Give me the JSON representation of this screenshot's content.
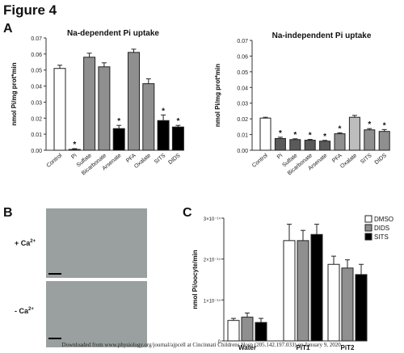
{
  "figure_title": "Figure 4",
  "panels": {
    "A": "A",
    "B": "B",
    "C": "C"
  },
  "micrographs": {
    "top_label_base": "+ Ca",
    "top_label_sup": "2+",
    "bottom_label_base": "- Ca",
    "bottom_label_sup": "2+"
  },
  "footer": "Downloaded from www.physiology.org/journal/ajpcell at Cincinnati Childrens Hosp (205.142.197.033) on January 9, 2020.",
  "colors": {
    "white": "#ffffff",
    "black": "#000000",
    "gray": "#8f8f8f",
    "light_gray": "#bdbdbd",
    "dark_gray": "#5a5a5a"
  },
  "chart_data": [
    {
      "type": "bar",
      "panel": "A",
      "title": "Na-dependent Pi uptake",
      "ylabel": "nmol Pi/mg prot*min",
      "ylim": [
        0,
        0.07
      ],
      "yticks": [
        "0.00",
        "0.01",
        "0.02",
        "0.03",
        "0.04",
        "0.05",
        "0.06",
        "0.07"
      ],
      "categories": [
        "Control",
        "Pi",
        "Sulfate",
        "Bicarbonate",
        "Arsenate",
        "PFA",
        "Oxalate",
        "SITS",
        "DIDS"
      ],
      "values": [
        0.051,
        0.0005,
        0.058,
        0.052,
        0.0135,
        0.061,
        0.0415,
        0.0185,
        0.0145
      ],
      "errors": [
        0.002,
        0.0005,
        0.0025,
        0.0025,
        0.002,
        0.002,
        0.003,
        0.0035,
        0.001
      ],
      "fills": [
        "white",
        "black",
        "gray",
        "gray",
        "black",
        "gray",
        "gray",
        "black",
        "black"
      ],
      "significant": [
        false,
        true,
        false,
        false,
        true,
        false,
        false,
        true,
        true
      ]
    },
    {
      "type": "bar",
      "panel": "A",
      "title": "Na-independent Pi uptake",
      "ylabel": "nmol Pi/mg prot*min",
      "ylim": [
        0,
        0.07
      ],
      "yticks": [
        "0.00",
        "0.01",
        "0.02",
        "0.03",
        "0.04",
        "0.05",
        "0.06",
        "0.07"
      ],
      "categories": [
        "Control",
        "Pi",
        "Sulfate",
        "Bicarbonate",
        "Arsenate",
        "PFA",
        "Oxalate",
        "SITS",
        "DIDS"
      ],
      "values": [
        0.0205,
        0.0075,
        0.0068,
        0.0064,
        0.0058,
        0.0105,
        0.021,
        0.013,
        0.012
      ],
      "errors": [
        0.0005,
        0.0008,
        0.0005,
        0.0005,
        0.0005,
        0.0006,
        0.0012,
        0.0008,
        0.0012
      ],
      "fills": [
        "white",
        "dark_gray",
        "dark_gray",
        "dark_gray",
        "dark_gray",
        "gray",
        "light_gray",
        "gray",
        "gray"
      ],
      "significant": [
        false,
        true,
        true,
        true,
        true,
        true,
        false,
        true,
        true
      ]
    },
    {
      "type": "bar",
      "panel": "C",
      "title": "",
      "ylabel": "nmol Pi/oocyte/min",
      "ylim": [
        0,
        3e-14
      ],
      "yticks": [
        "0",
        "1×10⁻¹⁴",
        "2×10⁻¹⁴",
        "3×10⁻¹⁴"
      ],
      "categories": [
        "Water",
        "PiT1",
        "PiT2"
      ],
      "series": [
        {
          "name": "DMSO",
          "fill": "white",
          "values": [
            5e-15,
            2.45e-14,
            1.87e-14
          ],
          "errors": [
            5e-16,
            4e-15,
            2e-15
          ]
        },
        {
          "name": "DIDS",
          "fill": "gray",
          "values": [
            5.8e-15,
            2.45e-14,
            1.78e-14
          ],
          "errors": [
            1e-15,
            2.5e-15,
            2e-15
          ]
        },
        {
          "name": "SITS",
          "fill": "black",
          "values": [
            4.5e-15,
            2.6e-14,
            1.62e-14
          ],
          "errors": [
            1e-15,
            2.5e-15,
            2.5e-15
          ]
        }
      ]
    }
  ]
}
